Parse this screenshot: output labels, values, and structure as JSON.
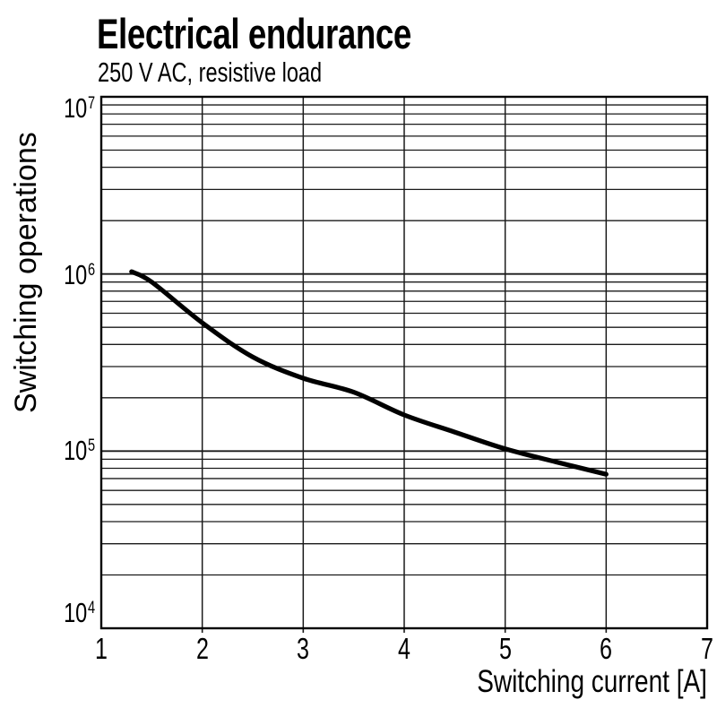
{
  "page": {
    "background": "#ffffff"
  },
  "chart_data": {
    "type": "line",
    "title": "Electrical endurance",
    "subtitle": "250 V AC, resistive load",
    "xlabel": "Switching current [A]",
    "ylabel": "Switching operations",
    "x_scale": "linear",
    "y_scale": "log",
    "xlim": [
      1,
      7
    ],
    "ylim": [
      10000,
      10000000
    ],
    "x_ticks": [
      "1",
      "2",
      "3",
      "4",
      "5",
      "6",
      "7"
    ],
    "x_tick_values": [
      1,
      2,
      3,
      4,
      5,
      6,
      7
    ],
    "y_ticks": [
      {
        "base": "10",
        "exp": "7",
        "value": 10000000
      },
      {
        "base": "10",
        "exp": "6",
        "value": 1000000
      },
      {
        "base": "10",
        "exp": "5",
        "value": 100000
      },
      {
        "base": "10",
        "exp": "4",
        "value": 10000
      }
    ],
    "grid": {
      "vertical_major": true,
      "horizontal_major": true,
      "horizontal_log_minor": true
    },
    "legend": "none",
    "series": [
      {
        "name": "electrical-endurance-curve",
        "color": "#000000",
        "line_width": 5.2,
        "x": [
          1.3,
          1.5,
          2.0,
          2.5,
          3.0,
          3.5,
          4.0,
          4.5,
          5.0,
          5.5,
          6.0
        ],
        "y": [
          1030000,
          900000,
          530000,
          340000,
          258000,
          215000,
          160000,
          128000,
          103000,
          87000,
          74000
        ]
      }
    ],
    "colors": {
      "axis": "#000000",
      "grid": "#1a1a1a",
      "text": "#000000",
      "background": "#ffffff"
    }
  }
}
